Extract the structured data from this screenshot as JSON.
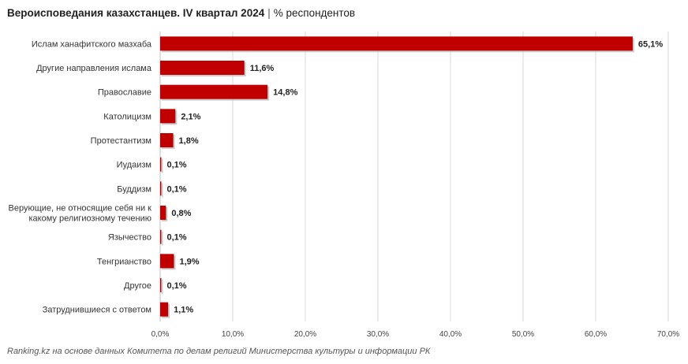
{
  "title": {
    "main": "Вероисповедания казахстанцев. IV квартал 2024",
    "separator": "|",
    "unit": "% респондентов"
  },
  "source": "Ranking.kz на основе данных Комитета по делам религий Министерства культуры и информации РК",
  "colors": {
    "bar": "#c00000",
    "bar_shadow": "#bfbfbf",
    "grid": "#d9d9d9"
  },
  "chart_data": {
    "type": "bar",
    "orientation": "horizontal",
    "categories": [
      [
        "Ислам ханафитского мазхаба"
      ],
      [
        "Другие направления ислама"
      ],
      [
        "Православие"
      ],
      [
        "Католицизм"
      ],
      [
        "Протестантизм"
      ],
      [
        "Иудаизм"
      ],
      [
        "Буддизм"
      ],
      [
        "Верующие, не относящие себя ни к",
        "какому религиозному течению"
      ],
      [
        "Язычество"
      ],
      [
        "Тенгрианство"
      ],
      [
        "Другое"
      ],
      [
        "Затруднившиеся с ответом"
      ]
    ],
    "values": [
      65.1,
      11.6,
      14.8,
      2.1,
      1.8,
      0.1,
      0.1,
      0.8,
      0.1,
      1.9,
      0.1,
      1.1
    ],
    "value_labels": [
      "65,1%",
      "11,6%",
      "14,8%",
      "2,1%",
      "1,8%",
      "0,1%",
      "0,1%",
      "0,8%",
      "0,1%",
      "1,9%",
      "0,1%",
      "1,1%"
    ],
    "xlim": [
      0,
      70
    ],
    "x_ticks": [
      0,
      10,
      20,
      30,
      40,
      50,
      60,
      70
    ],
    "x_tick_labels": [
      "0,0%",
      "10,0%",
      "20,0%",
      "30,0%",
      "40,0%",
      "50,0%",
      "60,0%",
      "70,0%"
    ],
    "grid": true
  }
}
